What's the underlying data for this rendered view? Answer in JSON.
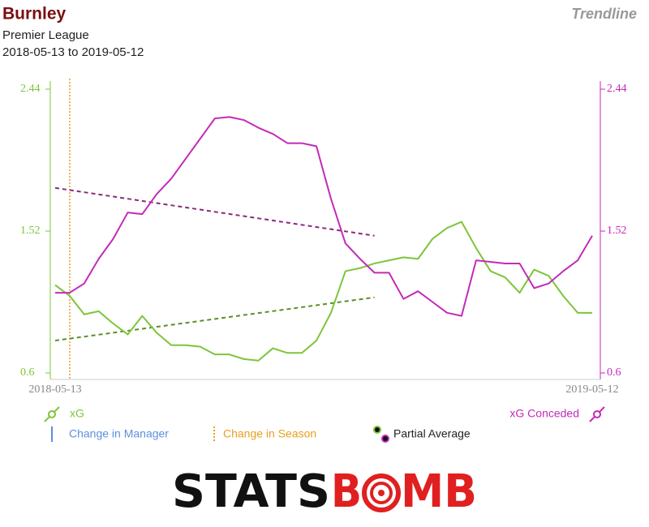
{
  "chart_data": {
    "type": "line",
    "title": "Burnley",
    "subtitle": "Premier League",
    "date_range": "2018-05-13 to 2019-05-12",
    "mode": "Trendline",
    "categories": [
      "2018-05-13",
      null,
      null,
      null,
      null,
      null,
      null,
      null,
      null,
      null,
      null,
      null,
      null,
      null,
      null,
      null,
      null,
      null,
      null,
      null,
      null,
      null,
      null,
      null,
      null,
      null,
      null,
      null,
      null,
      null,
      null,
      null,
      null,
      null,
      null,
      null,
      null,
      "2019-05-12"
    ],
    "series": [
      {
        "name": "xG",
        "color": "#7dc53a",
        "axis": "y",
        "values": [
          1.17,
          1.1,
          0.98,
          1.0,
          0.92,
          0.85,
          0.97,
          0.86,
          0.78,
          0.78,
          0.77,
          0.72,
          0.72,
          0.69,
          0.68,
          0.76,
          0.73,
          0.73,
          0.81,
          0.99,
          1.26,
          1.28,
          1.31,
          1.33,
          1.35,
          1.34,
          1.47,
          1.54,
          1.58,
          1.41,
          1.26,
          1.22,
          1.12,
          1.27,
          1.23,
          1.1,
          0.99,
          0.99
        ]
      },
      {
        "name": "xG Conceded",
        "color": "#c42ab8",
        "axis": "y2",
        "values": [
          1.12,
          1.12,
          1.18,
          1.34,
          1.47,
          1.64,
          1.63,
          1.76,
          1.86,
          1.99,
          2.12,
          2.25,
          2.26,
          2.24,
          2.19,
          2.15,
          2.09,
          2.09,
          2.07,
          1.73,
          1.44,
          1.34,
          1.25,
          1.25,
          1.08,
          1.13,
          1.06,
          0.99,
          0.97,
          1.33,
          1.32,
          1.31,
          1.31,
          1.15,
          1.18,
          1.26,
          1.33,
          1.49
        ]
      }
    ],
    "ylim": [
      0.6,
      2.44
    ],
    "yticks": [
      0.6,
      1.52,
      2.44
    ],
    "y2lim": [
      0.6,
      2.44
    ],
    "y2ticks": [
      0.6,
      1.52,
      2.44
    ],
    "manager_changes": {
      "name": "Change in Manager",
      "color": "#5b8fe0",
      "x": []
    },
    "season_changes": {
      "name": "Change in Season",
      "color": "#e6a020",
      "x": [
        1
      ]
    },
    "partial_average": {
      "name": "Partial Average",
      "lines": [
        {
          "color": "#5a8f2a",
          "x": [
            0,
            22
          ],
          "values": [
            0.81,
            1.09
          ]
        },
        {
          "color": "#8a2a7a",
          "x": [
            0,
            22
          ],
          "values": [
            1.8,
            1.49
          ]
        }
      ]
    },
    "brand": {
      "left": "STATS",
      "middle": "B",
      "right": "MB"
    }
  }
}
